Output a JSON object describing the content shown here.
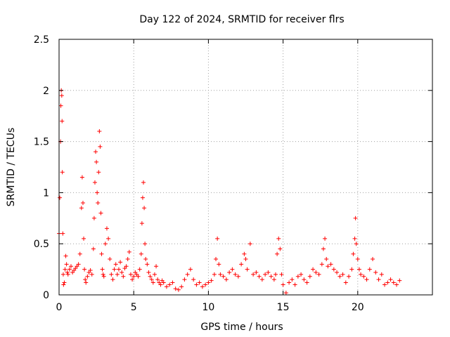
{
  "chart_data": {
    "type": "scatter",
    "title": "Day 122 of 2024, SRMTID for receiver flrs",
    "xlabel": "GPS time / hours",
    "ylabel": "SRMTID / TECUs",
    "xlim": [
      0,
      25
    ],
    "ylim": [
      0,
      2.5
    ],
    "xticks": [
      0,
      5,
      10,
      15,
      20
    ],
    "xtick_labels": [
      "0",
      "5",
      "10",
      "15",
      "20"
    ],
    "yticks": [
      0,
      0.5,
      1,
      1.5,
      2,
      2.5
    ],
    "ytick_labels": [
      "0",
      "0.5",
      "1",
      "1.5",
      "2",
      "2.5"
    ],
    "grid": true,
    "marker": "plus",
    "color": "#ff0000",
    "series": [
      {
        "name": "SRMTID",
        "x": [
          0.0,
          0.05,
          0.1,
          0.12,
          0.15,
          0.18,
          0.2,
          0.22,
          0.25,
          0.28,
          0.3,
          0.35,
          0.4,
          0.45,
          0.5,
          0.55,
          0.6,
          0.7,
          0.8,
          0.9,
          1.0,
          1.1,
          1.2,
          1.3,
          1.4,
          1.5,
          1.55,
          1.6,
          1.65,
          1.7,
          1.75,
          1.8,
          1.9,
          2.0,
          2.1,
          2.2,
          2.3,
          2.35,
          2.4,
          2.45,
          2.5,
          2.55,
          2.6,
          2.65,
          2.7,
          2.75,
          2.8,
          2.85,
          2.9,
          2.95,
          3.0,
          3.1,
          3.2,
          3.3,
          3.4,
          3.5,
          3.6,
          3.7,
          3.8,
          3.9,
          4.0,
          4.1,
          4.2,
          4.3,
          4.4,
          4.5,
          4.6,
          4.7,
          4.8,
          4.9,
          5.0,
          5.1,
          5.2,
          5.3,
          5.4,
          5.5,
          5.55,
          5.6,
          5.65,
          5.7,
          5.75,
          5.8,
          5.9,
          6.0,
          6.1,
          6.2,
          6.3,
          6.4,
          6.5,
          6.6,
          6.7,
          6.8,
          6.9,
          7.0,
          7.2,
          7.4,
          7.6,
          7.8,
          8.0,
          8.2,
          8.4,
          8.6,
          8.8,
          9.0,
          9.2,
          9.4,
          9.6,
          9.8,
          10.0,
          10.2,
          10.4,
          10.5,
          10.6,
          10.7,
          10.8,
          11.0,
          11.2,
          11.4,
          11.6,
          11.8,
          12.0,
          12.2,
          12.4,
          12.5,
          12.6,
          12.8,
          13.0,
          13.2,
          13.4,
          13.6,
          13.8,
          14.0,
          14.2,
          14.4,
          14.5,
          14.6,
          14.7,
          14.8,
          14.9,
          15.0,
          15.2,
          15.4,
          15.6,
          15.8,
          16.0,
          16.2,
          16.4,
          16.6,
          16.8,
          17.0,
          17.2,
          17.4,
          17.6,
          17.7,
          17.8,
          17.9,
          18.0,
          18.2,
          18.4,
          18.6,
          18.8,
          19.0,
          19.2,
          19.4,
          19.6,
          19.7,
          19.8,
          19.85,
          19.9,
          20.0,
          20.1,
          20.2,
          20.4,
          20.6,
          20.8,
          21.0,
          21.2,
          21.4,
          21.6,
          21.8,
          22.0,
          22.2,
          22.4,
          22.6,
          22.8
        ],
        "y": [
          0.6,
          0.95,
          1.5,
          1.85,
          2.0,
          1.95,
          1.7,
          1.2,
          0.6,
          0.2,
          0.1,
          0.12,
          0.25,
          0.38,
          0.3,
          0.22,
          0.2,
          0.25,
          0.28,
          0.22,
          0.24,
          0.26,
          0.28,
          0.3,
          0.4,
          0.85,
          1.15,
          0.9,
          0.55,
          0.25,
          0.15,
          0.12,
          0.18,
          0.22,
          0.24,
          0.2,
          0.45,
          0.75,
          1.1,
          1.4,
          1.3,
          1.0,
          0.9,
          1.2,
          1.6,
          1.45,
          0.8,
          0.4,
          0.25,
          0.2,
          0.18,
          0.5,
          0.65,
          0.55,
          0.35,
          0.2,
          0.15,
          0.25,
          0.3,
          0.2,
          0.25,
          0.32,
          0.22,
          0.18,
          0.26,
          0.28,
          0.35,
          0.42,
          0.2,
          0.15,
          0.18,
          0.22,
          0.2,
          0.18,
          0.25,
          0.4,
          0.7,
          0.95,
          1.1,
          0.85,
          0.5,
          0.35,
          0.3,
          0.22,
          0.18,
          0.15,
          0.12,
          0.2,
          0.28,
          0.15,
          0.12,
          0.1,
          0.14,
          0.12,
          0.08,
          0.1,
          0.12,
          0.06,
          0.05,
          0.08,
          0.15,
          0.2,
          0.25,
          0.15,
          0.1,
          0.12,
          0.08,
          0.1,
          0.12,
          0.14,
          0.2,
          0.35,
          0.55,
          0.3,
          0.2,
          0.18,
          0.15,
          0.22,
          0.25,
          0.2,
          0.18,
          0.3,
          0.4,
          0.35,
          0.25,
          0.5,
          0.2,
          0.22,
          0.18,
          0.15,
          0.2,
          0.22,
          0.18,
          0.15,
          0.2,
          0.4,
          0.55,
          0.45,
          0.2,
          0.1,
          0.02,
          0.12,
          0.15,
          0.1,
          0.18,
          0.2,
          0.15,
          0.12,
          0.18,
          0.25,
          0.22,
          0.2,
          0.3,
          0.45,
          0.55,
          0.35,
          0.28,
          0.3,
          0.25,
          0.22,
          0.18,
          0.2,
          0.12,
          0.18,
          0.25,
          0.4,
          0.55,
          0.75,
          0.5,
          0.35,
          0.25,
          0.2,
          0.18,
          0.15,
          0.25,
          0.35,
          0.22,
          0.15,
          0.2,
          0.1,
          0.12,
          0.15,
          0.12,
          0.1,
          0.14
        ]
      }
    ]
  }
}
